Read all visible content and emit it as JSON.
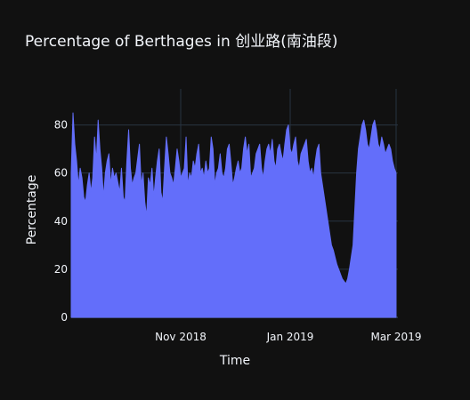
{
  "chart_data": {
    "type": "area",
    "title": "Percentage of Berthages in 创业路(南油段)",
    "xlabel": "Time",
    "ylabel": "Percentage",
    "ylim": [
      0,
      95
    ],
    "xlim": [
      "2018-09-01",
      "2019-03-02"
    ],
    "x_ticks": [
      {
        "date": "2018-11-01",
        "label": "Nov 2018"
      },
      {
        "date": "2019-01-01",
        "label": "Jan 2019"
      },
      {
        "date": "2019-03-01",
        "label": "Mar 2019"
      }
    ],
    "y_ticks": [
      0,
      20,
      40,
      60,
      80
    ],
    "grid": true,
    "legend": "none",
    "colors": {
      "fill": "#636efa",
      "background": "#111111",
      "grid": "#283442",
      "text": "#f2f5fa"
    },
    "series": [
      {
        "x_start": "2018-09-01",
        "x_step_days": 1,
        "values": [
          60,
          85,
          72,
          65,
          55,
          62,
          58,
          50,
          48,
          55,
          60,
          52,
          58,
          75,
          65,
          82,
          70,
          62,
          50,
          60,
          65,
          68,
          55,
          62,
          58,
          60,
          56,
          52,
          62,
          50,
          48,
          65,
          78,
          62,
          55,
          58,
          60,
          66,
          72,
          55,
          60,
          48,
          42,
          58,
          55,
          62,
          50,
          58,
          65,
          70,
          52,
          48,
          62,
          75,
          68,
          60,
          58,
          55,
          62,
          70,
          65,
          58,
          60,
          62,
          75,
          55,
          60,
          58,
          65,
          62,
          68,
          72,
          60,
          62,
          58,
          65,
          60,
          62,
          75,
          70,
          55,
          60,
          62,
          68,
          60,
          58,
          62,
          70,
          72,
          64,
          55,
          58,
          62,
          65,
          60,
          62,
          70,
          75,
          68,
          72,
          58,
          60,
          62,
          68,
          70,
          72,
          62,
          58,
          65,
          70,
          72,
          68,
          74,
          65,
          62,
          70,
          72,
          68,
          65,
          72,
          78,
          80,
          70,
          68,
          72,
          75,
          65,
          62,
          68,
          70,
          72,
          74,
          65,
          60,
          62,
          58,
          65,
          70,
          72,
          60,
          55,
          50,
          45,
          40,
          35,
          30,
          28,
          25,
          22,
          20,
          18,
          16,
          15,
          14,
          16,
          20,
          25,
          30,
          45,
          60,
          70,
          75,
          80,
          82,
          78,
          72,
          70,
          75,
          80,
          82,
          78,
          72,
          70,
          75,
          72,
          68,
          70,
          72,
          70,
          65,
          62,
          60
        ]
      }
    ]
  }
}
